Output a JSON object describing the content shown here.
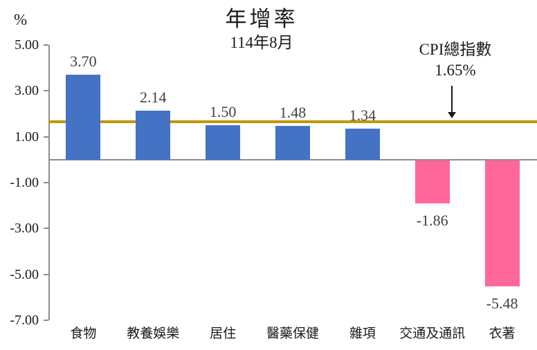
{
  "title": "年增率",
  "subtitle": "114年8月",
  "axis_unit_label": "%",
  "annotation": {
    "line1": "CPI總指數",
    "line2": "1.65%"
  },
  "colors": {
    "positive_bar": "#4472C4",
    "negative_bar": "#FF6699",
    "reference_line": "#C49500",
    "axis": "#8c8c8c",
    "value_label": "#404040",
    "text": "#1a1a1a"
  },
  "chart_data": {
    "type": "bar",
    "title": "年增率",
    "subtitle": "114年8月",
    "ylabel": "%",
    "categories": [
      "食物",
      "教養娛樂",
      "居住",
      "醫藥保健",
      "雜項",
      "交通及通訊",
      "衣著"
    ],
    "values": [
      3.7,
      2.14,
      1.5,
      1.48,
      1.34,
      -1.86,
      -5.48
    ],
    "value_labels": [
      "3.70",
      "2.14",
      "1.50",
      "1.48",
      "1.34",
      "-1.86",
      "-5.48"
    ],
    "ylim": [
      -7.0,
      5.0
    ],
    "ytick_values": [
      5,
      3,
      1,
      -1,
      -3,
      -5,
      -7
    ],
    "ytick_labels": [
      "5.00",
      "3.00",
      "1.00",
      "-1.00",
      "-3.00",
      "-5.00",
      "-7.00"
    ],
    "reference_line": {
      "label": "CPI總指數",
      "value_label": "1.65%",
      "value": 1.65
    },
    "grid": false,
    "legend": false
  }
}
